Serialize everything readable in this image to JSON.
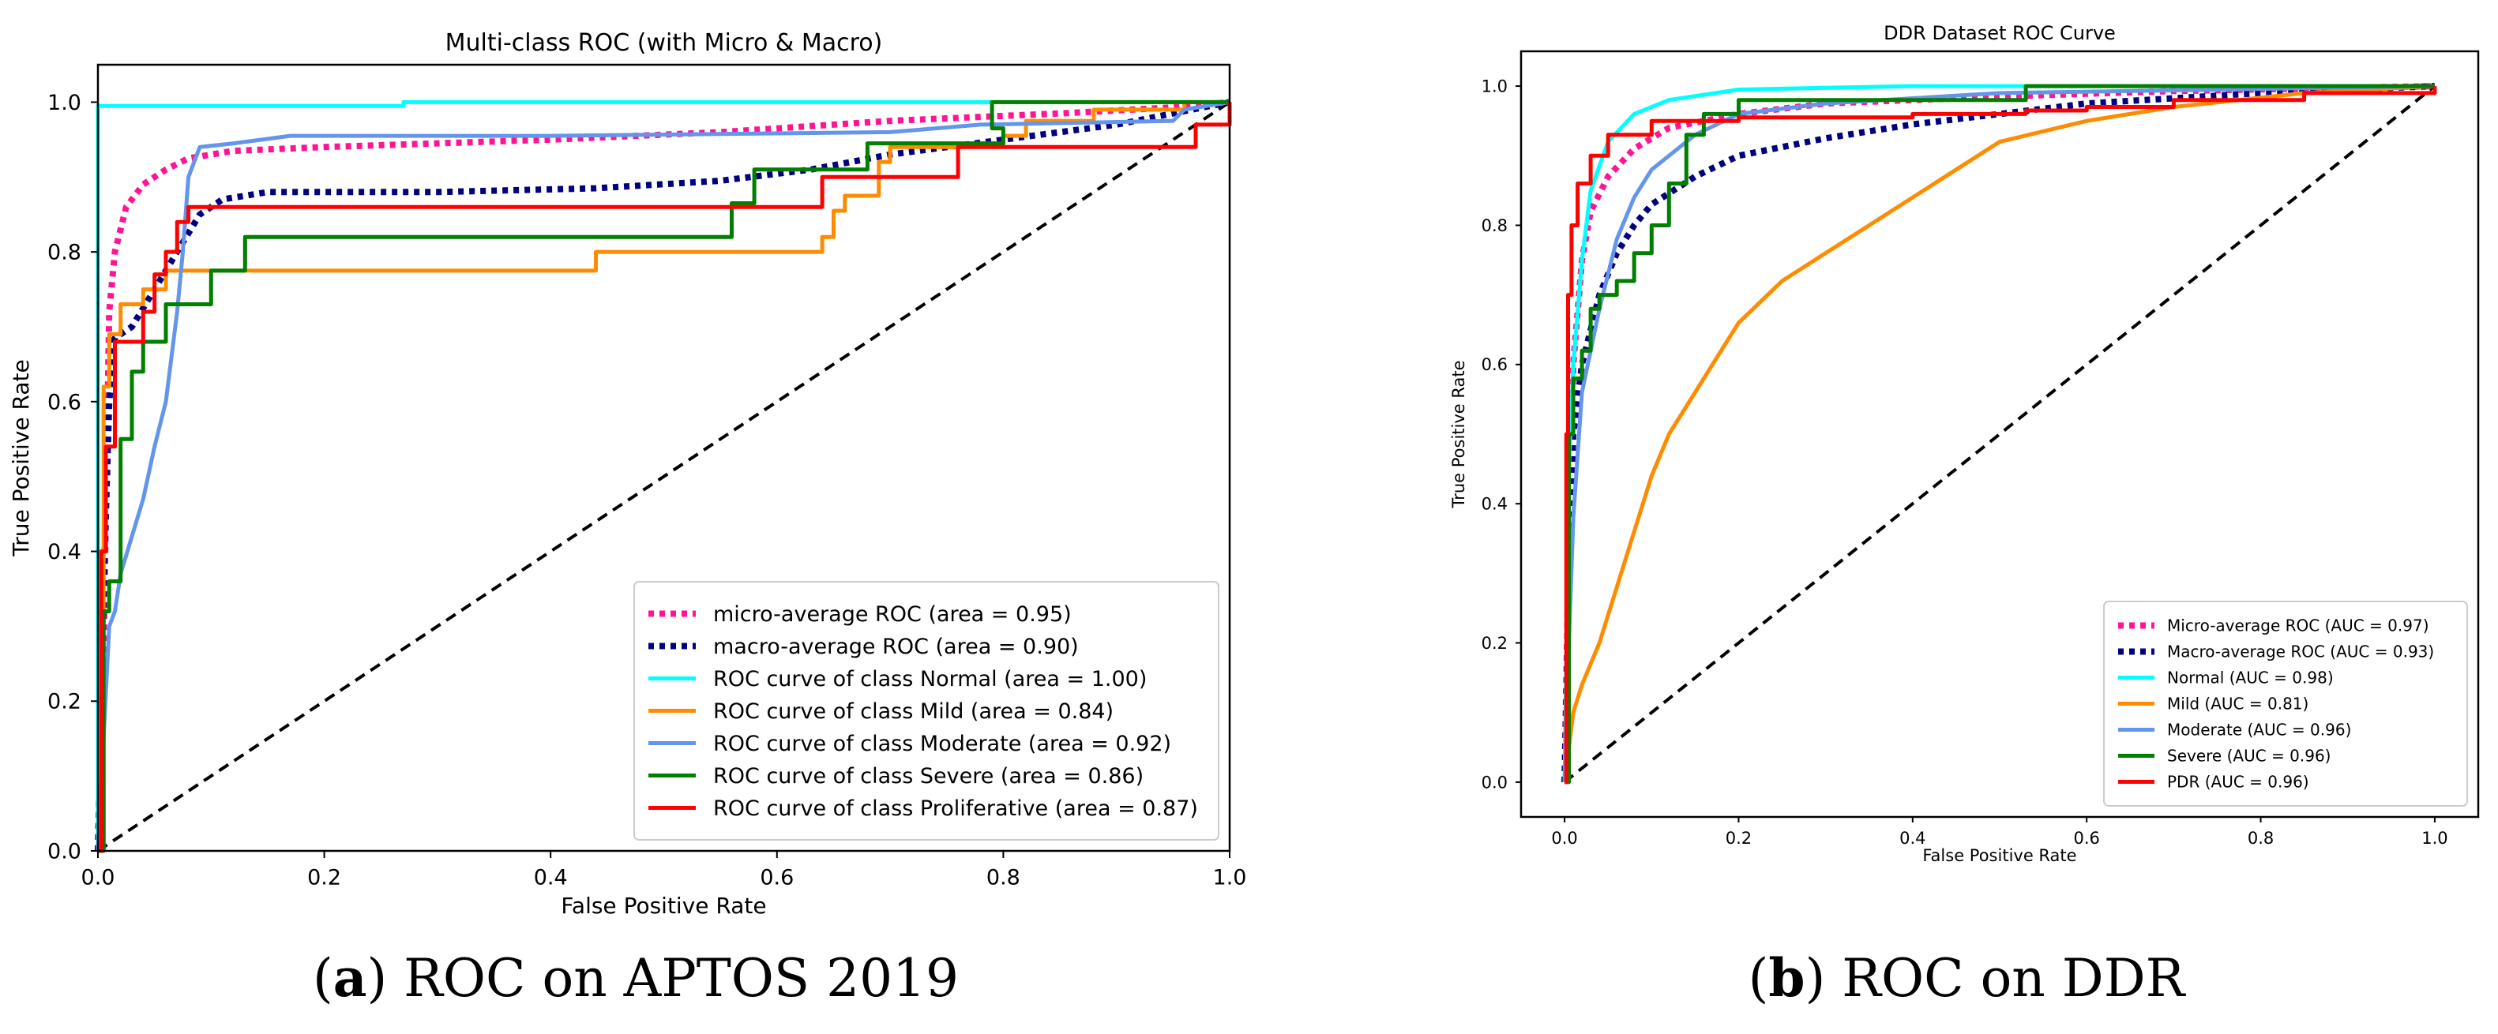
{
  "colors": {
    "micro": "#ff1493",
    "macro": "#00007f",
    "normal": "#00ffff",
    "mild": "#ff8c00",
    "moderate": "#6495ed",
    "severe": "#007f00",
    "proliferative": "#ff0000",
    "diagonal": "#000000"
  },
  "chart_data": [
    {
      "type": "line",
      "panel": "a",
      "title": "Multi-class ROC (with Micro & Macro)",
      "xlabel": "False Positive Rate",
      "ylabel": "True Positive Rate",
      "xlim": [
        0.0,
        1.0
      ],
      "ylim": [
        0.0,
        1.05
      ],
      "xticks": [
        0.0,
        0.2,
        0.4,
        0.6,
        0.8,
        1.0
      ],
      "xtick_labels": [
        "0.0",
        "0.2",
        "0.4",
        "0.6",
        "0.8",
        "1.0"
      ],
      "yticks": [
        0.0,
        0.2,
        0.4,
        0.6,
        0.8,
        1.0
      ],
      "ytick_labels": [
        "0.0",
        "0.2",
        "0.4",
        "0.6",
        "0.8",
        "1.0"
      ],
      "legend_position": "lower-right",
      "caption_label": "a",
      "caption_text": ") ROC on APTOS 2019",
      "series": [
        {
          "name": "micro-average ROC (area = 0.95)",
          "color_key": "micro",
          "style": "dotted",
          "step": false,
          "points": [
            [
              0,
              0
            ],
            [
              0.004,
              0.18
            ],
            [
              0.007,
              0.45
            ],
            [
              0.01,
              0.72
            ],
            [
              0.015,
              0.8
            ],
            [
              0.025,
              0.86
            ],
            [
              0.04,
              0.89
            ],
            [
              0.06,
              0.91
            ],
            [
              0.08,
              0.925
            ],
            [
              0.12,
              0.935
            ],
            [
              0.2,
              0.94
            ],
            [
              0.3,
              0.945
            ],
            [
              0.4,
              0.95
            ],
            [
              0.55,
              0.96
            ],
            [
              0.7,
              0.975
            ],
            [
              0.85,
              0.985
            ],
            [
              0.95,
              0.993
            ],
            [
              1,
              1
            ]
          ]
        },
        {
          "name": "macro-average ROC (area = 0.90)",
          "color_key": "macro",
          "style": "dotted",
          "step": false,
          "points": [
            [
              0,
              0
            ],
            [
              0.005,
              0.35
            ],
            [
              0.01,
              0.6
            ],
            [
              0.015,
              0.685
            ],
            [
              0.03,
              0.7
            ],
            [
              0.05,
              0.75
            ],
            [
              0.07,
              0.8
            ],
            [
              0.09,
              0.85
            ],
            [
              0.11,
              0.87
            ],
            [
              0.15,
              0.88
            ],
            [
              0.3,
              0.88
            ],
            [
              0.44,
              0.885
            ],
            [
              0.55,
              0.895
            ],
            [
              0.63,
              0.91
            ],
            [
              0.7,
              0.93
            ],
            [
              0.8,
              0.95
            ],
            [
              0.9,
              0.97
            ],
            [
              0.95,
              0.985
            ],
            [
              1,
              1
            ]
          ]
        },
        {
          "name": "ROC curve of class Normal (area = 1.00)",
          "color_key": "normal",
          "style": "solid",
          "step": false,
          "points": [
            [
              0,
              0
            ],
            [
              0,
              0.995
            ],
            [
              0.27,
              0.995
            ],
            [
              0.27,
              1.0
            ],
            [
              1,
              1
            ]
          ]
        },
        {
          "name": "ROC curve of class Mild (area = 0.84)",
          "color_key": "mild",
          "style": "solid",
          "step": true,
          "points": [
            [
              0,
              0
            ],
            [
              0.005,
              0.62
            ],
            [
              0.01,
              0.69
            ],
            [
              0.02,
              0.73
            ],
            [
              0.04,
              0.75
            ],
            [
              0.06,
              0.775
            ],
            [
              0.44,
              0.8
            ],
            [
              0.64,
              0.82
            ],
            [
              0.65,
              0.855
            ],
            [
              0.66,
              0.875
            ],
            [
              0.69,
              0.92
            ],
            [
              0.7,
              0.94
            ],
            [
              0.8,
              0.955
            ],
            [
              0.82,
              0.975
            ],
            [
              0.88,
              0.99
            ],
            [
              0.96,
              1.0
            ],
            [
              1,
              1
            ]
          ]
        },
        {
          "name": "ROC curve of class Moderate (area = 0.92)",
          "color_key": "moderate",
          "style": "solid",
          "step": false,
          "points": [
            [
              0,
              0
            ],
            [
              0.01,
              0.3
            ],
            [
              0.015,
              0.32
            ],
            [
              0.02,
              0.37
            ],
            [
              0.03,
              0.42
            ],
            [
              0.04,
              0.47
            ],
            [
              0.05,
              0.54
            ],
            [
              0.06,
              0.6
            ],
            [
              0.07,
              0.72
            ],
            [
              0.075,
              0.8
            ],
            [
              0.08,
              0.9
            ],
            [
              0.09,
              0.94
            ],
            [
              0.12,
              0.945
            ],
            [
              0.17,
              0.955
            ],
            [
              0.4,
              0.955
            ],
            [
              0.7,
              0.96
            ],
            [
              0.78,
              0.97
            ],
            [
              0.95,
              0.975
            ],
            [
              0.96,
              0.99
            ],
            [
              1,
              1
            ]
          ]
        },
        {
          "name": "ROC curve of class Severe (area = 0.86)",
          "color_key": "severe",
          "style": "solid",
          "step": true,
          "points": [
            [
              0,
              0
            ],
            [
              0.005,
              0.32
            ],
            [
              0.01,
              0.36
            ],
            [
              0.02,
              0.55
            ],
            [
              0.03,
              0.64
            ],
            [
              0.04,
              0.68
            ],
            [
              0.06,
              0.73
            ],
            [
              0.1,
              0.775
            ],
            [
              0.13,
              0.82
            ],
            [
              0.4,
              0.82
            ],
            [
              0.56,
              0.865
            ],
            [
              0.58,
              0.91
            ],
            [
              0.68,
              0.945
            ],
            [
              0.8,
              0.965
            ],
            [
              0.79,
              1.0
            ],
            [
              1,
              1
            ]
          ]
        },
        {
          "name": "ROC curve of class Proliferative (area = 0.87)",
          "color_key": "proliferative",
          "style": "solid",
          "step": true,
          "points": [
            [
              0,
              0
            ],
            [
              0.003,
              0.4
            ],
            [
              0.007,
              0.54
            ],
            [
              0.015,
              0.68
            ],
            [
              0.04,
              0.72
            ],
            [
              0.05,
              0.77
            ],
            [
              0.06,
              0.8
            ],
            [
              0.07,
              0.84
            ],
            [
              0.08,
              0.86
            ],
            [
              0.3,
              0.86
            ],
            [
              0.54,
              0.86
            ],
            [
              0.64,
              0.9
            ],
            [
              0.76,
              0.94
            ],
            [
              0.97,
              0.97
            ],
            [
              1,
              1
            ]
          ]
        }
      ]
    },
    {
      "type": "line",
      "panel": "b",
      "title": "DDR Dataset ROC Curve",
      "xlabel": "False Positive Rate",
      "ylabel": "True Positive Rate",
      "xlim": [
        -0.05,
        1.05
      ],
      "ylim": [
        -0.05,
        1.05
      ],
      "xticks": [
        0.0,
        0.2,
        0.4,
        0.6,
        0.8,
        1.0
      ],
      "xtick_labels": [
        "0.0",
        "0.2",
        "0.4",
        "0.6",
        "0.8",
        "1.0"
      ],
      "yticks": [
        0.0,
        0.2,
        0.4,
        0.6,
        0.8,
        1.0
      ],
      "ytick_labels": [
        "0.0",
        "0.2",
        "0.4",
        "0.6",
        "0.8",
        "1.0"
      ],
      "legend_position": "lower-right",
      "caption_label": "b",
      "caption_text": ") ROC on DDR",
      "series": [
        {
          "name": "Micro-average ROC (AUC = 0.97)",
          "color_key": "micro",
          "style": "dotted",
          "step": false,
          "points": [
            [
              0,
              0
            ],
            [
              0.005,
              0.35
            ],
            [
              0.01,
              0.6
            ],
            [
              0.02,
              0.75
            ],
            [
              0.03,
              0.82
            ],
            [
              0.05,
              0.87
            ],
            [
              0.08,
              0.91
            ],
            [
              0.12,
              0.94
            ],
            [
              0.2,
              0.96
            ],
            [
              0.3,
              0.975
            ],
            [
              0.5,
              0.985
            ],
            [
              0.7,
              0.993
            ],
            [
              1,
              1
            ]
          ]
        },
        {
          "name": "Macro-average ROC (AUC = 0.93)",
          "color_key": "macro",
          "style": "dotted",
          "step": false,
          "points": [
            [
              0,
              0
            ],
            [
              0.005,
              0.3
            ],
            [
              0.01,
              0.5
            ],
            [
              0.02,
              0.6
            ],
            [
              0.04,
              0.7
            ],
            [
              0.06,
              0.76
            ],
            [
              0.08,
              0.8
            ],
            [
              0.1,
              0.83
            ],
            [
              0.15,
              0.87
            ],
            [
              0.2,
              0.9
            ],
            [
              0.3,
              0.925
            ],
            [
              0.4,
              0.945
            ],
            [
              0.5,
              0.96
            ],
            [
              0.6,
              0.975
            ],
            [
              0.8,
              0.99
            ],
            [
              1,
              1
            ]
          ]
        },
        {
          "name": "Normal (AUC = 0.98)",
          "color_key": "normal",
          "style": "solid",
          "step": false,
          "points": [
            [
              0,
              0
            ],
            [
              0.005,
              0.45
            ],
            [
              0.01,
              0.6
            ],
            [
              0.02,
              0.75
            ],
            [
              0.03,
              0.85
            ],
            [
              0.05,
              0.92
            ],
            [
              0.08,
              0.96
            ],
            [
              0.12,
              0.98
            ],
            [
              0.2,
              0.995
            ],
            [
              0.4,
              1.0
            ],
            [
              1,
              1
            ]
          ]
        },
        {
          "name": "Mild (AUC = 0.81)",
          "color_key": "mild",
          "style": "solid",
          "step": false,
          "points": [
            [
              0,
              0
            ],
            [
              0.005,
              0.05
            ],
            [
              0.01,
              0.1
            ],
            [
              0.02,
              0.14
            ],
            [
              0.04,
              0.2
            ],
            [
              0.06,
              0.28
            ],
            [
              0.08,
              0.36
            ],
            [
              0.1,
              0.44
            ],
            [
              0.12,
              0.5
            ],
            [
              0.15,
              0.56
            ],
            [
              0.18,
              0.62
            ],
            [
              0.2,
              0.66
            ],
            [
              0.25,
              0.72
            ],
            [
              0.3,
              0.76
            ],
            [
              0.35,
              0.8
            ],
            [
              0.4,
              0.84
            ],
            [
              0.45,
              0.88
            ],
            [
              0.5,
              0.92
            ],
            [
              0.6,
              0.95
            ],
            [
              0.7,
              0.97
            ],
            [
              0.85,
              0.99
            ],
            [
              1,
              1
            ]
          ]
        },
        {
          "name": "Moderate (AUC = 0.96)",
          "color_key": "moderate",
          "style": "solid",
          "step": false,
          "points": [
            [
              0,
              0
            ],
            [
              0.005,
              0.2
            ],
            [
              0.01,
              0.38
            ],
            [
              0.02,
              0.56
            ],
            [
              0.04,
              0.68
            ],
            [
              0.06,
              0.78
            ],
            [
              0.08,
              0.84
            ],
            [
              0.1,
              0.88
            ],
            [
              0.15,
              0.93
            ],
            [
              0.2,
              0.96
            ],
            [
              0.3,
              0.975
            ],
            [
              0.5,
              0.99
            ],
            [
              1,
              1
            ]
          ]
        },
        {
          "name": "Severe (AUC = 0.96)",
          "color_key": "severe",
          "style": "solid",
          "step": true,
          "points": [
            [
              0,
              0
            ],
            [
              0.005,
              0.5
            ],
            [
              0.01,
              0.58
            ],
            [
              0.02,
              0.62
            ],
            [
              0.03,
              0.68
            ],
            [
              0.04,
              0.7
            ],
            [
              0.06,
              0.72
            ],
            [
              0.08,
              0.76
            ],
            [
              0.1,
              0.8
            ],
            [
              0.12,
              0.86
            ],
            [
              0.14,
              0.93
            ],
            [
              0.16,
              0.96
            ],
            [
              0.2,
              0.98
            ],
            [
              0.53,
              0.99
            ],
            [
              0.53,
              1.0
            ],
            [
              1,
              1
            ]
          ]
        },
        {
          "name": "PDR (AUC = 0.96)",
          "color_key": "proliferative",
          "style": "solid",
          "step": true,
          "points": [
            [
              0,
              0
            ],
            [
              0.002,
              0.5
            ],
            [
              0.004,
              0.7
            ],
            [
              0.008,
              0.8
            ],
            [
              0.015,
              0.86
            ],
            [
              0.03,
              0.9
            ],
            [
              0.05,
              0.93
            ],
            [
              0.1,
              0.95
            ],
            [
              0.2,
              0.955
            ],
            [
              0.4,
              0.96
            ],
            [
              0.53,
              0.965
            ],
            [
              0.6,
              0.97
            ],
            [
              0.7,
              0.98
            ],
            [
              0.85,
              0.99
            ],
            [
              1,
              1
            ]
          ]
        }
      ]
    }
  ]
}
